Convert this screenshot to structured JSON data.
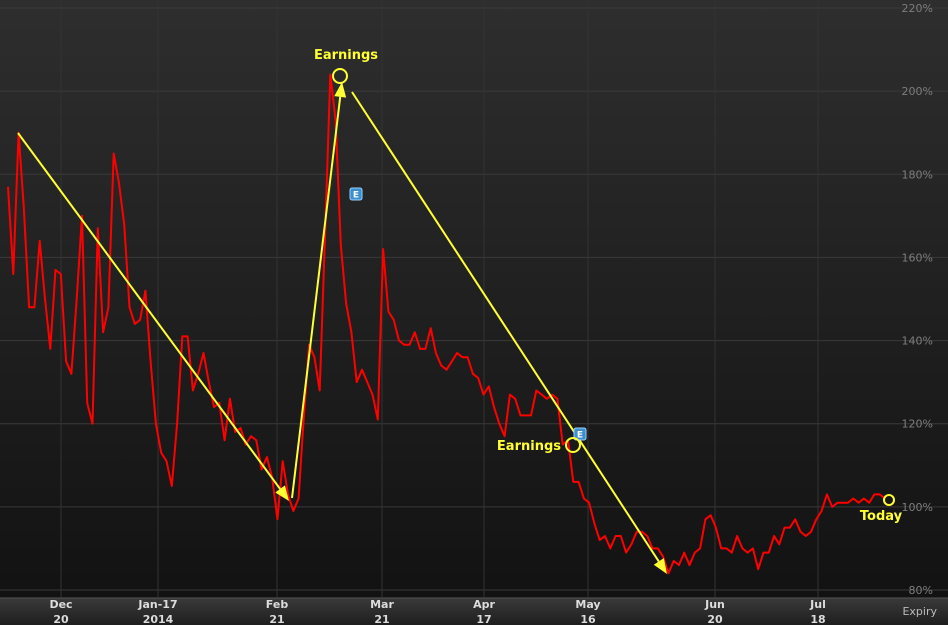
{
  "chart_data": {
    "type": "line",
    "x_axis_label": "Expiry",
    "x_ticks": [
      {
        "month": "Dec",
        "day": "20"
      },
      {
        "month": "Jan-17",
        "day": "2014"
      },
      {
        "month": "Feb",
        "day": "21"
      },
      {
        "month": "Mar",
        "day": "21"
      },
      {
        "month": "Apr",
        "day": "17"
      },
      {
        "month": "May",
        "day": "16"
      },
      {
        "month": "Jun",
        "day": "20"
      },
      {
        "month": "Jul",
        "day": "18"
      }
    ],
    "y_ticks": [
      "80%",
      "100%",
      "120%",
      "140%",
      "160%",
      "180%",
      "200%",
      "220%"
    ],
    "ylim": [
      80,
      220
    ],
    "y_unit": "%",
    "grid": true,
    "series": [
      {
        "color": "#ff0000",
        "values": [
          177,
          156,
          190,
          172,
          148,
          148,
          164,
          150,
          138,
          157,
          156,
          135,
          132,
          150,
          170,
          125,
          120,
          167,
          142,
          148,
          185,
          178,
          168,
          148,
          144,
          145,
          152,
          135,
          120,
          113,
          111,
          105,
          120,
          141,
          141,
          128,
          132,
          137,
          130,
          124,
          125,
          116,
          126,
          118,
          119,
          115,
          117,
          116,
          109,
          112,
          107,
          97,
          111,
          103,
          99,
          102,
          122,
          139,
          136,
          128,
          165,
          204,
          193,
          163,
          149,
          142,
          130,
          133,
          130,
          127,
          121,
          162,
          147,
          145,
          140,
          139,
          139,
          142,
          138,
          138,
          143,
          137,
          134,
          133,
          135,
          137,
          136,
          136,
          132,
          131,
          127,
          129,
          124,
          120,
          117,
          127,
          126,
          122,
          122,
          122,
          128,
          127,
          126,
          127,
          126,
          115,
          116,
          106,
          106,
          102,
          101,
          96,
          92,
          93,
          90,
          93,
          93,
          89,
          91,
          94,
          94,
          93,
          90,
          90,
          88,
          84,
          87,
          86,
          89,
          86,
          89,
          90,
          97,
          98,
          95,
          90,
          90,
          89,
          93,
          90,
          89,
          90,
          85,
          89,
          89,
          93,
          91,
          95,
          95,
          97,
          94,
          93,
          94,
          97,
          99,
          103,
          100,
          101,
          101,
          101,
          102,
          101,
          102,
          101,
          103,
          103,
          102
        ]
      }
    ],
    "annotations": [
      {
        "label": "Earnings",
        "color": "#ffff33"
      },
      {
        "label": "Earnings",
        "color": "#ffff33"
      },
      {
        "label": "Today",
        "color": "#ffff33"
      }
    ],
    "earnings_markers": [
      {
        "label": "E"
      },
      {
        "label": "E"
      }
    ]
  }
}
